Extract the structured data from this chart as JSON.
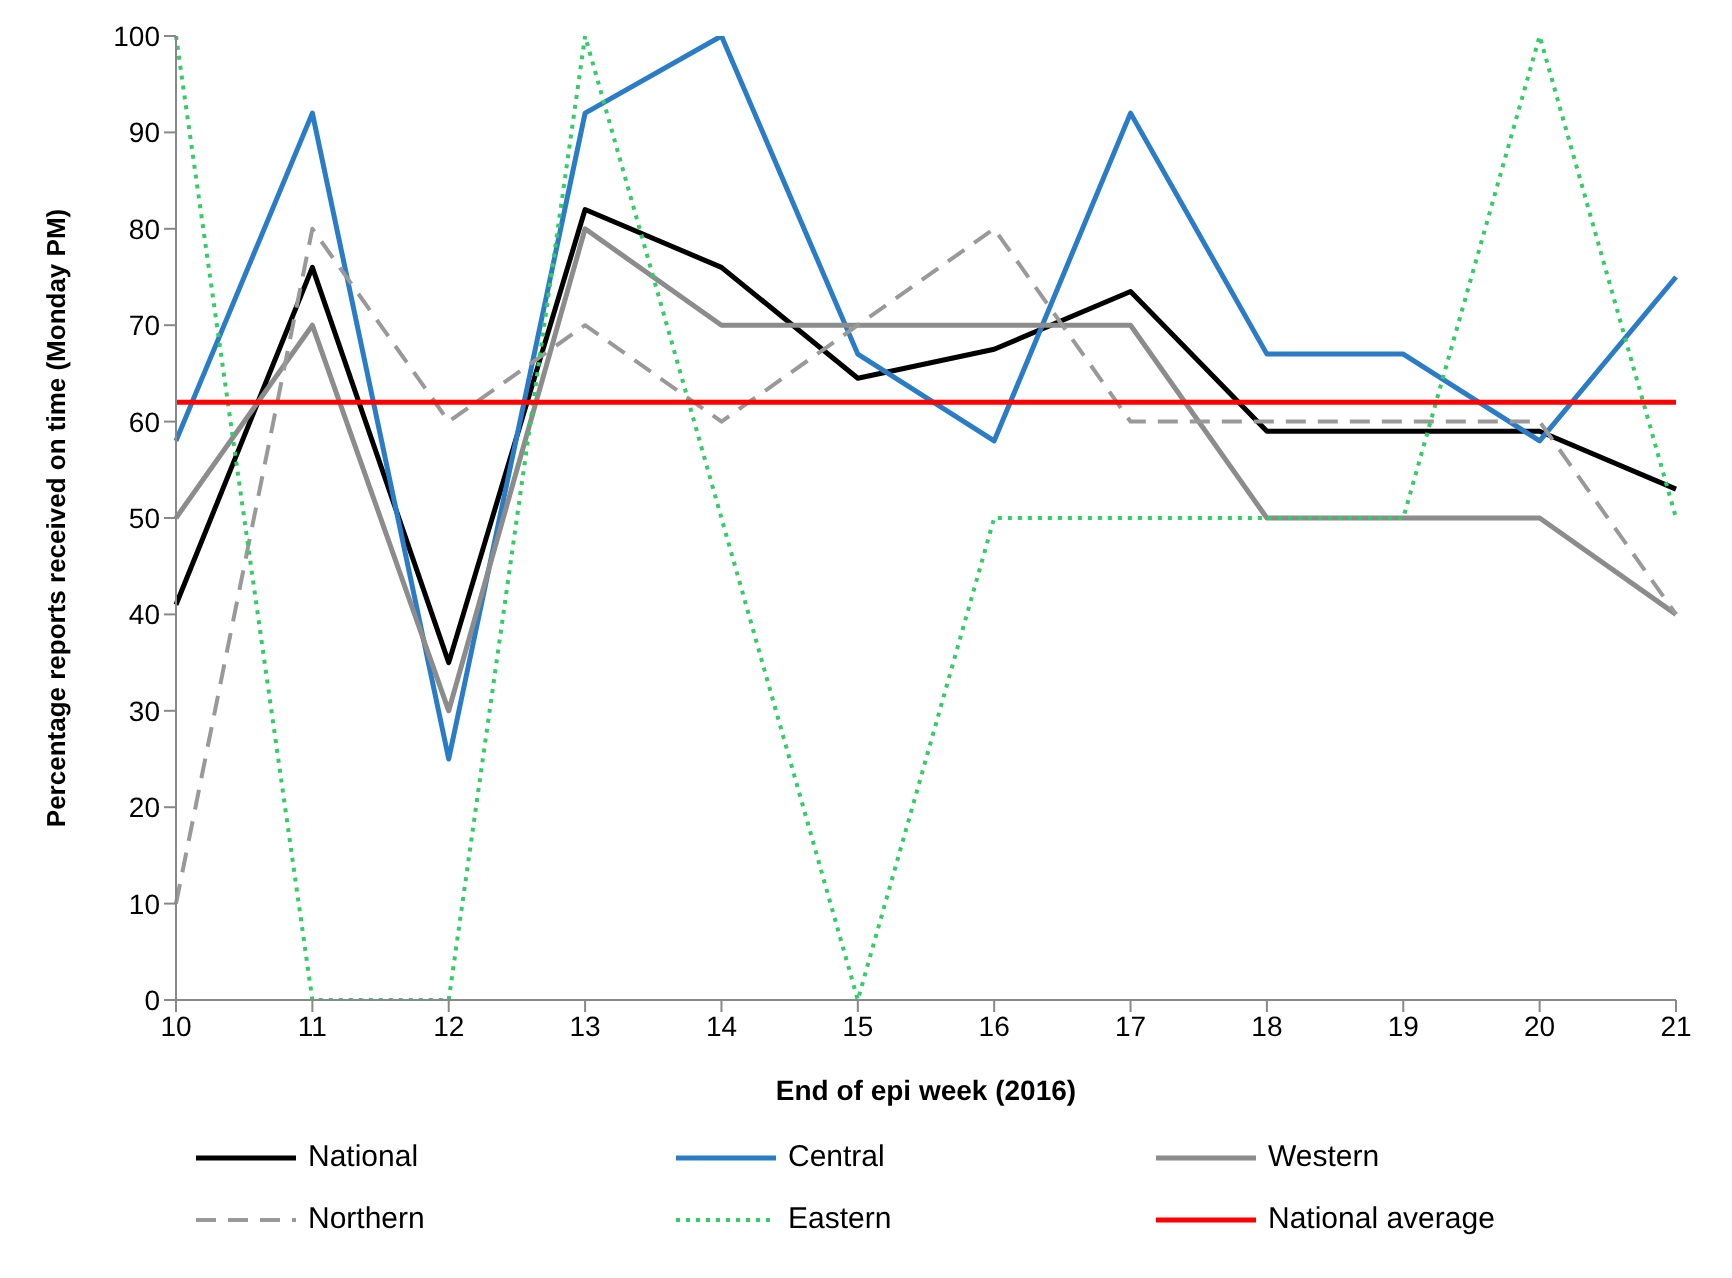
{
  "chart_data": {
    "type": "line",
    "xlabel": "End of epi week (2016)",
    "ylabel": "Percentage reports received on time (Monday PM)",
    "categories": [
      "10",
      "11",
      "12",
      "13",
      "14",
      "15",
      "16",
      "17",
      "18",
      "19",
      "20",
      "21"
    ],
    "ylim": [
      0,
      100
    ],
    "yticks": [
      0,
      10,
      20,
      30,
      40,
      50,
      60,
      70,
      80,
      90,
      100
    ],
    "grid": false,
    "legend": "bottom",
    "marker": "none",
    "series": [
      {
        "name": "National",
        "color": "#000000",
        "line_style": "solid",
        "values": [
          41,
          76,
          35,
          82,
          76,
          64.5,
          67.5,
          73.5,
          59,
          59,
          59,
          53
        ]
      },
      {
        "name": "Central",
        "color": "#2a7cc7",
        "line_style": "solid",
        "values": [
          58,
          92,
          25,
          92,
          100,
          67,
          58,
          92,
          67,
          67,
          58,
          75
        ]
      },
      {
        "name": "Western",
        "color": "#8c8c8c",
        "line_style": "solid",
        "values": [
          50,
          70,
          30,
          80,
          70,
          70,
          70,
          70,
          50,
          50,
          50,
          40
        ]
      },
      {
        "name": "Northern",
        "color": "#999999",
        "line_style": "dashed",
        "values": [
          10,
          80,
          60,
          70,
          60,
          70,
          80,
          60,
          60,
          60,
          60,
          40
        ]
      },
      {
        "name": "Eastern",
        "color": "#33cc66",
        "line_style": "dotted",
        "values": [
          100,
          0,
          0,
          100,
          50,
          0,
          50,
          50,
          50,
          50,
          100,
          50
        ]
      },
      {
        "name": "National average",
        "color": "#ff0000",
        "line_style": "solid",
        "values": [
          62,
          62,
          62,
          62,
          62,
          62,
          62,
          62,
          62,
          62,
          62,
          62
        ]
      }
    ]
  }
}
